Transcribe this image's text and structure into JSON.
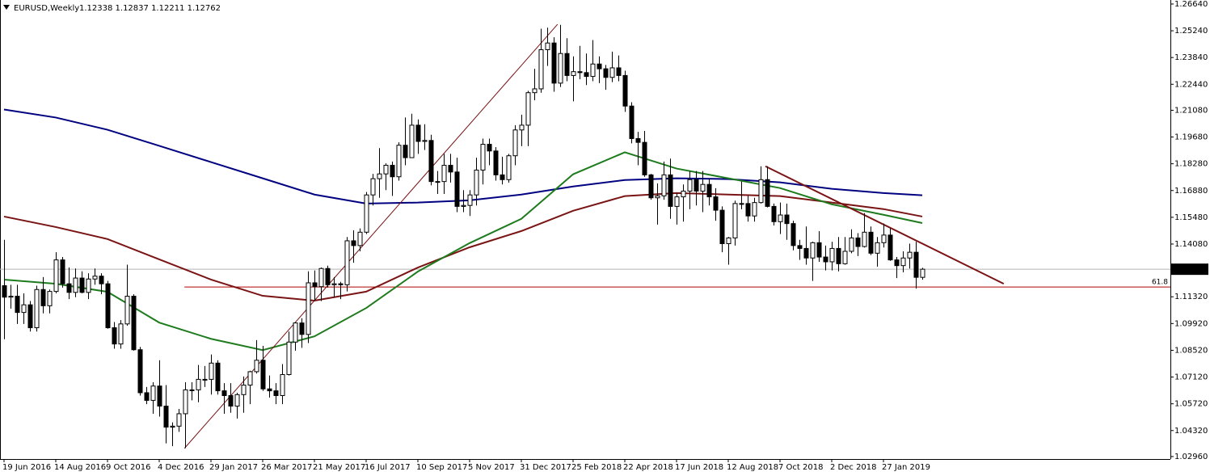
{
  "chart_data": {
    "type": "candlestick",
    "title": "EURUSD,Weekly",
    "ohlc_label": "1.12338 1.12837 1.12211 1.12762",
    "up_color": "#ffffff",
    "down_color": "#000000",
    "outline_color": "#000000",
    "categories": [
      "19 Jun 2016",
      null,
      null,
      null,
      null,
      null,
      null,
      null,
      "14 Aug 2016",
      null,
      null,
      null,
      null,
      null,
      null,
      null,
      "9 Oct 2016",
      null,
      null,
      null,
      null,
      null,
      null,
      null,
      "4 Dec 2016",
      null,
      null,
      null,
      null,
      null,
      null,
      null,
      "29 Jan 2017",
      null,
      null,
      null,
      null,
      null,
      null,
      null,
      "26 Mar 2017",
      null,
      null,
      null,
      null,
      null,
      null,
      null,
      "21 May 2017",
      null,
      null,
      null,
      null,
      null,
      null,
      null,
      "16 Jul 2017",
      null,
      null,
      null,
      null,
      null,
      null,
      null,
      "10 Sep 2017",
      null,
      null,
      null,
      null,
      null,
      null,
      null,
      "5 Nov 2017",
      null,
      null,
      null,
      null,
      null,
      null,
      null,
      "31 Dec 2017",
      null,
      null,
      null,
      null,
      null,
      null,
      null,
      "25 Feb 2018",
      null,
      null,
      null,
      null,
      null,
      null,
      null,
      "22 Apr 2018",
      null,
      null,
      null,
      null,
      null,
      null,
      null,
      "17 Jun 2018",
      null,
      null,
      null,
      null,
      null,
      null,
      null,
      "12 Aug 2018",
      null,
      null,
      null,
      null,
      null,
      null,
      null,
      "7 Oct 2018",
      null,
      null,
      null,
      null,
      null,
      null,
      null,
      "2 Dec 2018",
      null,
      null,
      null,
      null,
      null,
      null,
      null,
      "27 Jan 2019",
      null,
      null,
      null,
      null,
      null,
      null
    ],
    "open": [
      1.119,
      1.113,
      1.1135,
      1.105,
      1.109,
      1.097,
      1.117,
      1.1085,
      1.116,
      1.1325,
      1.12,
      1.1155,
      1.123,
      1.1155,
      1.1225,
      1.124,
      1.12,
      1.097,
      1.0885,
      1.099,
      1.1135,
      1.0855,
      1.063,
      1.059,
      1.0665,
      1.056,
      1.045,
      1.0455,
      1.052,
      1.0645,
      1.0645,
      1.07,
      1.07,
      1.0785,
      1.064,
      1.0615,
      1.056,
      1.062,
      1.067,
      1.074,
      1.08,
      1.065,
      1.064,
      1.0615,
      1.0725,
      1.0895,
      1.0995,
      1.0935,
      1.1205,
      1.1185,
      1.128,
      1.1195,
      1.12,
      1.1195,
      1.1425,
      1.14,
      1.147,
      1.1665,
      1.175,
      1.1775,
      1.182,
      1.176,
      1.1925,
      1.186,
      1.203,
      1.1945,
      1.195,
      1.1735,
      1.1735,
      1.182,
      1.1785,
      1.1605,
      1.161,
      1.1665,
      1.1795,
      1.193,
      1.1895,
      1.177,
      1.1745,
      1.187,
      1.2005,
      1.203,
      1.22,
      1.222,
      1.2425,
      1.246,
      1.225,
      1.2405,
      1.229,
      1.231,
      1.2305,
      1.2285,
      1.235,
      1.2325,
      1.228,
      1.233,
      1.229,
      1.213,
      1.196,
      1.194,
      1.177,
      1.165,
      1.166,
      1.177,
      1.1605,
      1.1655,
      1.1685,
      1.1745,
      1.1685,
      1.172,
      1.1655,
      1.1585,
      1.141,
      1.144,
      1.162,
      1.162,
      1.1555,
      1.1625,
      1.1745,
      1.1605,
      1.1525,
      1.156,
      1.1515,
      1.14,
      1.1385,
      1.1335,
      1.1415,
      1.134,
      1.1315,
      1.1385,
      1.1305,
      1.137,
      1.144,
      1.1395,
      1.147,
      1.136,
      1.1415,
      1.1455,
      1.1325,
      1.1295,
      1.1335,
      1.1365,
      1.12338
    ],
    "high": [
      1.143,
      1.1195,
      1.1195,
      1.115,
      1.111,
      1.119,
      1.1235,
      1.117,
      1.1365,
      1.134,
      1.1285,
      1.128,
      1.1265,
      1.1255,
      1.128,
      1.1255,
      1.1215,
      1.1,
      1.101,
      1.13,
      1.1145,
      1.087,
      1.066,
      1.0685,
      1.08,
      1.067,
      1.0475,
      1.0545,
      1.0685,
      1.0685,
      1.0775,
      1.077,
      1.083,
      1.08,
      1.068,
      1.068,
      1.063,
      1.0715,
      1.0745,
      1.0905,
      1.0875,
      1.072,
      1.068,
      1.078,
      1.095,
      1.1,
      1.102,
      1.1265,
      1.127,
      1.1285,
      1.1295,
      1.1235,
      1.121,
      1.1445,
      1.148,
      1.149,
      1.168,
      1.1775,
      1.191,
      1.183,
      1.184,
      1.194,
      1.207,
      1.209,
      1.206,
      1.2035,
      1.198,
      1.179,
      1.188,
      1.188,
      1.186,
      1.169,
      1.169,
      1.186,
      1.196,
      1.196,
      1.1915,
      1.1865,
      1.188,
      1.203,
      1.2085,
      1.221,
      1.2325,
      1.2535,
      1.254,
      1.249,
      1.2555,
      1.2485,
      1.239,
      1.2445,
      1.2405,
      1.2475,
      1.239,
      1.2345,
      1.2415,
      1.2395,
      1.2315,
      1.215,
      1.1995,
      1.2,
      1.1775,
      1.1725,
      1.184,
      1.1855,
      1.1675,
      1.172,
      1.179,
      1.179,
      1.179,
      1.175,
      1.17,
      1.1605,
      1.1445,
      1.1635,
      1.1735,
      1.166,
      1.165,
      1.1815,
      1.1815,
      1.162,
      1.1625,
      1.162,
      1.153,
      1.143,
      1.15,
      1.142,
      1.1475,
      1.14,
      1.142,
      1.1445,
      1.1445,
      1.1485,
      1.1465,
      1.157,
      1.15,
      1.1445,
      1.1515,
      1.149,
      1.134,
      1.137,
      1.141,
      1.142,
      1.12837
    ],
    "low": [
      1.091,
      1.107,
      1.099,
      1.099,
      1.095,
      1.095,
      1.1045,
      1.1045,
      1.115,
      1.118,
      1.112,
      1.113,
      1.115,
      1.112,
      1.1195,
      1.1145,
      1.0965,
      1.086,
      1.086,
      1.098,
      1.085,
      1.0615,
      1.057,
      1.052,
      1.0505,
      1.0365,
      1.035,
      1.0425,
      1.034,
      1.059,
      1.058,
      1.066,
      1.062,
      1.062,
      1.052,
      1.0525,
      1.0495,
      1.0525,
      1.057,
      1.073,
      1.064,
      1.0605,
      1.057,
      1.057,
      1.072,
      1.085,
      1.0865,
      1.089,
      1.111,
      1.111,
      1.118,
      1.113,
      1.112,
      1.116,
      1.131,
      1.137,
      1.146,
      1.161,
      1.165,
      1.169,
      1.166,
      1.174,
      1.182,
      1.186,
      1.188,
      1.19,
      1.1715,
      1.167,
      1.167,
      1.173,
      1.1575,
      1.1575,
      1.1555,
      1.161,
      1.172,
      1.182,
      1.174,
      1.172,
      1.173,
      1.182,
      1.192,
      1.192,
      1.216,
      1.22,
      1.234,
      1.2205,
      1.223,
      1.226,
      1.2155,
      1.227,
      1.224,
      1.226,
      1.225,
      1.2215,
      1.2255,
      1.226,
      1.21,
      1.1935,
      1.182,
      1.176,
      1.164,
      1.151,
      1.164,
      1.154,
      1.151,
      1.1525,
      1.159,
      1.161,
      1.1575,
      1.161,
      1.153,
      1.1365,
      1.13,
      1.14,
      1.159,
      1.1525,
      1.1525,
      1.162,
      1.16,
      1.1505,
      1.146,
      1.143,
      1.1375,
      1.1325,
      1.13,
      1.1215,
      1.1315,
      1.127,
      1.127,
      1.1265,
      1.13,
      1.136,
      1.1345,
      1.139,
      1.135,
      1.129,
      1.139,
      1.132,
      1.123,
      1.126,
      1.128,
      1.1175,
      1.12211
    ],
    "close": [
      1.113,
      1.1135,
      1.105,
      1.109,
      1.097,
      1.117,
      1.1085,
      1.116,
      1.1325,
      1.12,
      1.1155,
      1.123,
      1.1155,
      1.1225,
      1.124,
      1.12,
      1.097,
      1.0885,
      1.099,
      1.1135,
      1.0855,
      1.063,
      1.059,
      1.0665,
      1.056,
      1.045,
      1.0455,
      1.052,
      1.0645,
      1.0645,
      1.07,
      1.07,
      1.0785,
      1.064,
      1.0615,
      1.056,
      1.062,
      1.067,
      1.074,
      1.08,
      1.065,
      1.064,
      1.0615,
      1.0725,
      1.0895,
      1.0995,
      1.0935,
      1.1205,
      1.1185,
      1.128,
      1.1195,
      1.12,
      1.1195,
      1.1425,
      1.14,
      1.147,
      1.1665,
      1.175,
      1.1775,
      1.182,
      1.176,
      1.1925,
      1.186,
      1.203,
      1.1945,
      1.195,
      1.1735,
      1.1735,
      1.182,
      1.1785,
      1.1605,
      1.161,
      1.1665,
      1.1795,
      1.193,
      1.1895,
      1.177,
      1.1745,
      1.187,
      1.2005,
      1.203,
      1.22,
      1.222,
      1.2425,
      1.246,
      1.225,
      1.2405,
      1.229,
      1.231,
      1.2305,
      1.2285,
      1.235,
      1.2325,
      1.228,
      1.233,
      1.229,
      1.213,
      1.196,
      1.194,
      1.177,
      1.165,
      1.166,
      1.177,
      1.1605,
      1.1655,
      1.1685,
      1.1745,
      1.1685,
      1.172,
      1.1655,
      1.1585,
      1.141,
      1.144,
      1.162,
      1.162,
      1.1555,
      1.1625,
      1.1745,
      1.1605,
      1.1525,
      1.156,
      1.1515,
      1.14,
      1.1385,
      1.1335,
      1.1415,
      1.134,
      1.1315,
      1.1385,
      1.1305,
      1.137,
      1.144,
      1.1395,
      1.147,
      1.136,
      1.1415,
      1.1455,
      1.1325,
      1.1295,
      1.1335,
      1.1365,
      1.12338,
      1.12762
    ],
    "lines": [
      {
        "color": "#000080",
        "x": [
          0,
          8,
          16,
          24,
          32,
          40,
          48,
          56,
          64,
          72,
          80,
          88,
          96,
          104,
          112,
          120,
          128,
          136,
          142
        ],
        "values": [
          1.2112,
          1.207,
          1.2006,
          1.1922,
          1.1837,
          1.1752,
          1.1667,
          1.162,
          1.1625,
          1.1637,
          1.1667,
          1.1709,
          1.1743,
          1.1752,
          1.1748,
          1.1731,
          1.1697,
          1.1675,
          1.1663
        ]
      },
      {
        "color": "#7a1414",
        "x": [
          0,
          8,
          16,
          24,
          32,
          40,
          48,
          56,
          64,
          72,
          80,
          88,
          96,
          104,
          112,
          120,
          128,
          136,
          142
        ],
        "values": [
          1.1552,
          1.1497,
          1.1434,
          1.1328,
          1.1222,
          1.1137,
          1.1112,
          1.1159,
          1.1285,
          1.1391,
          1.1476,
          1.1582,
          1.1659,
          1.1675,
          1.1667,
          1.1659,
          1.1625,
          1.1591,
          1.1552
        ]
      },
      {
        "color": "#1e7b1e",
        "x": [
          0,
          8,
          16,
          24,
          32,
          40,
          48,
          56,
          64,
          72,
          80,
          88,
          96,
          104,
          112,
          120,
          128,
          136,
          142
        ],
        "values": [
          1.1222,
          1.12,
          1.1158,
          1.0997,
          1.0912,
          1.0853,
          1.0925,
          1.1073,
          1.1264,
          1.1413,
          1.154,
          1.1773,
          1.1888,
          1.1803,
          1.1752,
          1.1701,
          1.1616,
          1.1561,
          1.1518
        ]
      }
    ],
    "trendlines": [
      {
        "color": "#7a1414",
        "width": 1,
        "x": [
          27.9,
          85.6
        ],
        "values": [
          1.0339,
          1.2558
        ]
      },
      {
        "color": "#7a1414",
        "width": 2,
        "x": [
          117.75,
          154.6
        ],
        "values": [
          1.1815,
          1.12
        ]
      }
    ],
    "level": {
      "value": 1.1183,
      "label": "61.8",
      "x_start": 27.9,
      "color": "#b00000"
    },
    "current_price": {
      "value": 1.12762,
      "label": "1.12762"
    },
    "xlim": [
      -0.625,
      180.375
    ],
    "ylim": [
      1.0283,
      1.2685
    ],
    "yticks": [
      {
        "value": 1.2664,
        "label": "1.26640"
      },
      {
        "value": 1.2524,
        "label": "1.25240"
      },
      {
        "value": 1.2384,
        "label": "1.23840"
      },
      {
        "value": 1.2244,
        "label": "1.22440"
      },
      {
        "value": 1.2108,
        "label": "1.21080"
      },
      {
        "value": 1.1968,
        "label": "1.19680"
      },
      {
        "value": 1.1828,
        "label": "1.18280"
      },
      {
        "value": 1.1688,
        "label": "1.16880"
      },
      {
        "value": 1.1548,
        "label": "1.15480"
      },
      {
        "value": 1.1408,
        "label": "1.14080"
      },
      {
        "value": 1.1132,
        "label": "1.11320"
      },
      {
        "value": 1.0992,
        "label": "1.09920"
      },
      {
        "value": 1.0852,
        "label": "1.08520"
      },
      {
        "value": 1.0712,
        "label": "1.07120"
      },
      {
        "value": 1.0572,
        "label": "1.05720"
      },
      {
        "value": 1.0432,
        "label": "1.04320"
      },
      {
        "value": 1.0296,
        "label": "1.02960"
      }
    ]
  }
}
